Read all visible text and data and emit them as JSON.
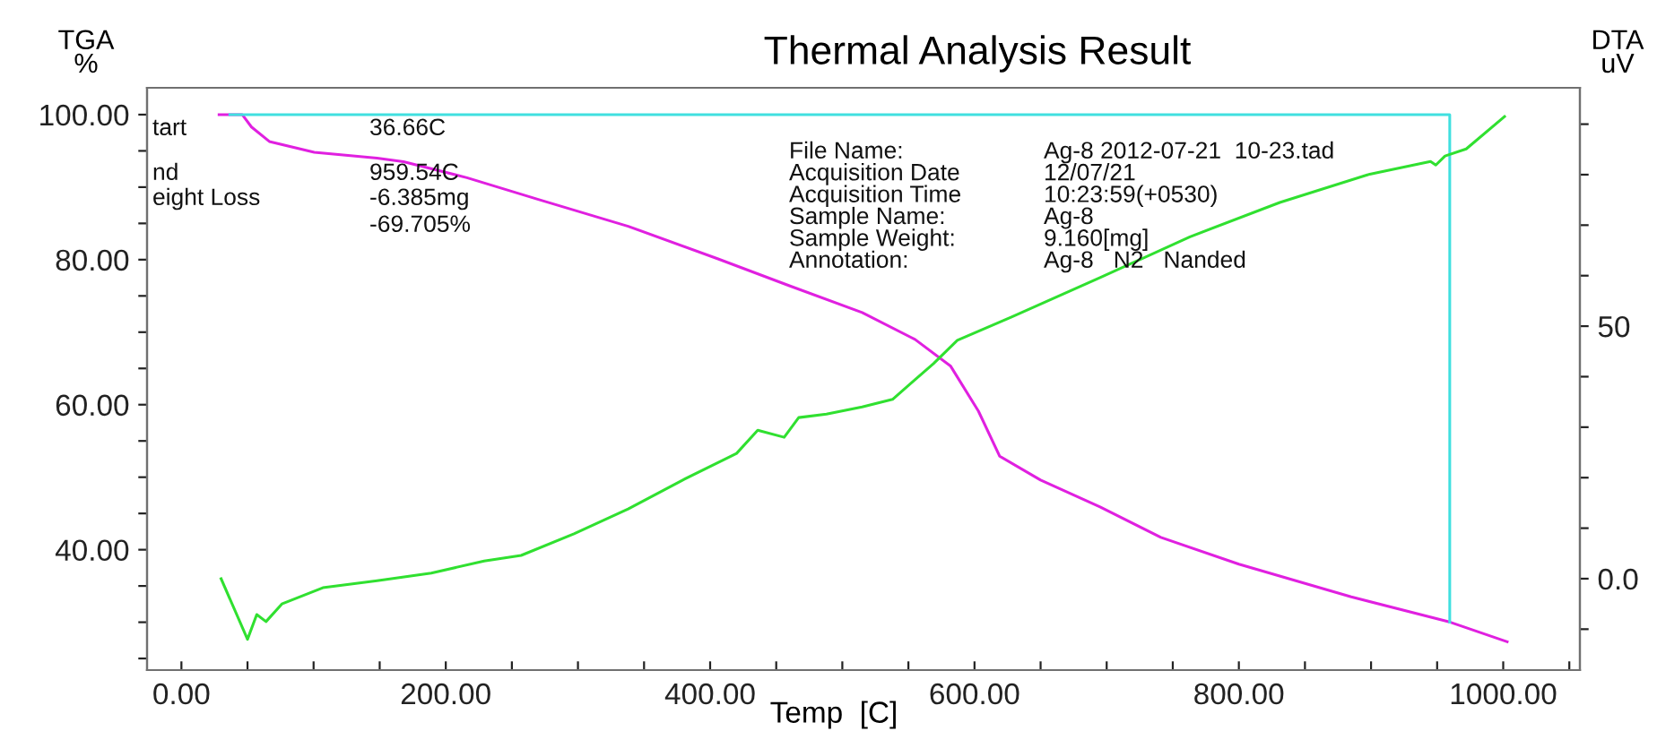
{
  "chart_data": {
    "type": "line",
    "title": "Thermal Analysis Result",
    "xlabel": "Temp  [C]",
    "ylabel": "TGA\n%",
    "y2label": "DTA\nuV",
    "annotations": [
      "tart",
      "36.66C",
      "nd",
      "959.54C",
      "eight Loss",
      "-6.385mg",
      "-69.705%",
      "File Name:",
      "Ag-8 2012-07-21  10-23.tad",
      "Acquisition Date",
      "12/07/21",
      "Acquisition Time",
      "10:23:59(+0530)",
      "Sample Name:",
      "Ag-8",
      "Sample Weight:",
      "9.160[mg]",
      "Annotation:",
      "Ag-8   N2   Nanded"
    ],
    "series": [
      {
        "color": "#40e0e0",
        "axis": "y",
        "x": [
          36.66,
          959.54,
          959.54
        ],
        "values": [
          100,
          100,
          30.0
        ]
      },
      {
        "color": "#e020e0",
        "axis": "y",
        "x": [
          28.5,
          46,
          53,
          66.5,
          100.5,
          148,
          168,
          216,
          270,
          338,
          406,
          460,
          515,
          555,
          582,
          603,
          619,
          650,
          695,
          741,
          800,
          885,
          960,
          1003
        ],
        "values": [
          100,
          100,
          98.3,
          96.3,
          94.8,
          94.0,
          93.5,
          91.3,
          88.3,
          84.6,
          80.1,
          76.4,
          72.7,
          69.0,
          65.3,
          59.1,
          52.9,
          49.6,
          45.9,
          41.7,
          38.0,
          33.5,
          30.0,
          27.3
        ]
      },
      {
        "color": "#30e030",
        "axis": "y2",
        "x": [
          30,
          50,
          57,
          64,
          76,
          107,
          148,
          189,
          229,
          257,
          297,
          338,
          379,
          420,
          436,
          456,
          467,
          488,
          515,
          538,
          569,
          587,
          628,
          695,
          763,
          831,
          899,
          945,
          949,
          956,
          972,
          1001
        ],
        "values": [
          0,
          -12,
          -7.1,
          -8.5,
          -5,
          -1.8,
          -0.4,
          1.1,
          3.5,
          4.6,
          8.9,
          13.8,
          19.5,
          24.8,
          29.4,
          28,
          31.9,
          32.6,
          34,
          35.5,
          42.6,
          47.2,
          51.8,
          59.6,
          67.7,
          74.5,
          80.1,
          82.6,
          81.9,
          83.7,
          85.1,
          91.5
        ]
      }
    ],
    "xlim": [
      -26,
      1058
    ],
    "ylim": [
      23.4,
      103.7
    ],
    "y2lim": [
      -18.1,
      97.2
    ],
    "xticks": [
      {
        "value": 0,
        "label": "0.00"
      },
      {
        "value": 50,
        "label": null
      },
      {
        "value": 100,
        "label": null
      },
      {
        "value": 150,
        "label": null
      },
      {
        "value": 200,
        "label": "200.00"
      },
      {
        "value": 250,
        "label": null
      },
      {
        "value": 300,
        "label": null
      },
      {
        "value": 350,
        "label": null
      },
      {
        "value": 400,
        "label": "400.00"
      },
      {
        "value": 450,
        "label": null
      },
      {
        "value": 500,
        "label": null
      },
      {
        "value": 550,
        "label": null
      },
      {
        "value": 600,
        "label": "600.00"
      },
      {
        "value": 650,
        "label": null
      },
      {
        "value": 700,
        "label": null
      },
      {
        "value": 750,
        "label": null
      },
      {
        "value": 800,
        "label": "800.00"
      },
      {
        "value": 850,
        "label": null
      },
      {
        "value": 900,
        "label": null
      },
      {
        "value": 950,
        "label": null
      },
      {
        "value": 1000,
        "label": "1000.00"
      },
      {
        "value": 1050,
        "label": null
      }
    ],
    "yticks": [
      {
        "value": 25,
        "label": null
      },
      {
        "value": 30,
        "label": null
      },
      {
        "value": 35,
        "label": null
      },
      {
        "value": 40,
        "label": "40.00"
      },
      {
        "value": 45,
        "label": null
      },
      {
        "value": 50,
        "label": null
      },
      {
        "value": 55,
        "label": null
      },
      {
        "value": 60,
        "label": "60.00"
      },
      {
        "value": 65,
        "label": null
      },
      {
        "value": 70,
        "label": null
      },
      {
        "value": 75,
        "label": null
      },
      {
        "value": 80,
        "label": "80.00"
      },
      {
        "value": 85,
        "label": null
      },
      {
        "value": 90,
        "label": null
      },
      {
        "value": 95,
        "label": null
      },
      {
        "value": 100,
        "label": "100.00"
      }
    ],
    "y2ticks": [
      {
        "value": -10,
        "label": null
      },
      {
        "value": 0,
        "label": "0.0"
      },
      {
        "value": 10,
        "label": null
      },
      {
        "value": 20,
        "label": null
      },
      {
        "value": 30,
        "label": null
      },
      {
        "value": 40,
        "label": null
      },
      {
        "value": 50,
        "label": "50"
      },
      {
        "value": 60,
        "label": null
      },
      {
        "value": 70,
        "label": null
      },
      {
        "value": 80,
        "label": null
      },
      {
        "value": 90,
        "label": null
      }
    ]
  }
}
